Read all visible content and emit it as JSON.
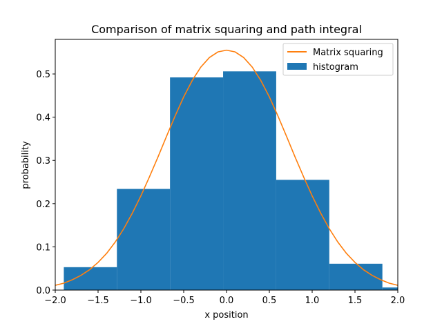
{
  "chart_data": {
    "type": "bar",
    "title": "Comparison of matrix squaring and path integral",
    "xlabel": "x position",
    "ylabel": "probability",
    "xlim": [
      -2.0,
      2.0
    ],
    "ylim": [
      0.0,
      0.58
    ],
    "xticks": [
      -2.0,
      -1.5,
      -1.0,
      -0.5,
      0.0,
      0.5,
      1.0,
      1.5,
      2.0
    ],
    "xtick_labels": [
      "−2.0",
      "−1.5",
      "−1.0",
      "−0.5",
      "0.0",
      "0.5",
      "1.0",
      "1.5",
      "2.0"
    ],
    "yticks": [
      0.0,
      0.1,
      0.2,
      0.3,
      0.4,
      0.5
    ],
    "ytick_labels": [
      "0.0",
      "0.1",
      "0.2",
      "0.3",
      "0.4",
      "0.5"
    ],
    "grid": false,
    "legend_position": "top-right",
    "histogram": {
      "name": "histogram",
      "color": "#1f77b4",
      "bin_edges": [
        -1.9,
        -1.28,
        -0.66,
        -0.04,
        0.58,
        1.2,
        1.82,
        2.44
      ],
      "values": [
        0.053,
        0.234,
        0.492,
        0.506,
        0.255,
        0.061,
        0.006
      ]
    },
    "line": {
      "name": "Matrix squaring",
      "color": "#ff7f0e",
      "x": [
        -2.0,
        -1.9,
        -1.8,
        -1.7,
        -1.6,
        -1.5,
        -1.4,
        -1.3,
        -1.2,
        -1.1,
        -1.0,
        -0.9,
        -0.8,
        -0.7,
        -0.6,
        -0.5,
        -0.4,
        -0.3,
        -0.2,
        -0.1,
        0.0,
        0.1,
        0.2,
        0.3,
        0.4,
        0.5,
        0.6,
        0.7,
        0.8,
        0.9,
        1.0,
        1.1,
        1.2,
        1.3,
        1.4,
        1.5,
        1.6,
        1.7,
        1.8,
        1.9,
        2.0
      ],
      "y": [
        0.011,
        0.016,
        0.024,
        0.034,
        0.047,
        0.064,
        0.085,
        0.111,
        0.142,
        0.178,
        0.218,
        0.262,
        0.308,
        0.356,
        0.403,
        0.447,
        0.485,
        0.516,
        0.538,
        0.551,
        0.555,
        0.551,
        0.538,
        0.516,
        0.485,
        0.447,
        0.403,
        0.356,
        0.308,
        0.262,
        0.218,
        0.178,
        0.142,
        0.111,
        0.085,
        0.064,
        0.047,
        0.034,
        0.024,
        0.016,
        0.011
      ]
    }
  }
}
